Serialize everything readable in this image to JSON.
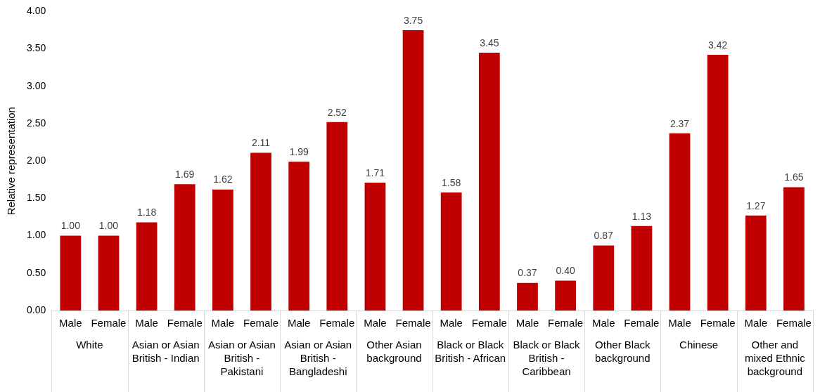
{
  "chart_data": {
    "type": "bar",
    "ylabel": "Relative representation",
    "categories": [
      "Male",
      "Female",
      "Male",
      "Female",
      "Male",
      "Female",
      "Male",
      "Female",
      "Male",
      "Female",
      "Male",
      "Female",
      "Male",
      "Female",
      "Male",
      "Female",
      "Male",
      "Female",
      "Male",
      "Female"
    ],
    "values": [
      1.0,
      1.0,
      1.18,
      1.69,
      1.62,
      2.11,
      1.99,
      2.52,
      1.71,
      3.75,
      1.58,
      3.45,
      0.37,
      0.4,
      0.87,
      1.13,
      2.37,
      3.42,
      1.27,
      1.65
    ],
    "value_labels": [
      "1.00",
      "1.00",
      "1.18",
      "1.69",
      "1.62",
      "2.11",
      "1.99",
      "2.52",
      "1.71",
      "3.75",
      "1.58",
      "3.45",
      "0.37",
      "0.40",
      "0.87",
      "1.13",
      "2.37",
      "3.42",
      "1.27",
      "1.65"
    ],
    "color": "#c00000",
    "ylim": [
      0,
      4
    ],
    "yticks": [
      {
        "value": 0,
        "label": "0.00"
      },
      {
        "value": 0.5,
        "label": "0.50"
      },
      {
        "value": 1,
        "label": "1.00"
      },
      {
        "value": 1.5,
        "label": "1.50"
      },
      {
        "value": 2,
        "label": "2.00"
      },
      {
        "value": 2.5,
        "label": "2.50"
      },
      {
        "value": 3,
        "label": "3.00"
      },
      {
        "value": 3.5,
        "label": "3.50"
      },
      {
        "value": 4,
        "label": "4.00"
      }
    ],
    "annotations": [
      "White",
      "Asian or Asian British - Indian",
      "Asian or Asian British - Pakistani",
      "Asian or Asian British - Bangladeshi",
      "Other Asian background",
      "Black or Black British - African",
      "Black or Black British - Caribbean",
      "Other Black background",
      "Chinese",
      "Other and mixed Ethnic background"
    ],
    "legend": false,
    "grid": false
  }
}
